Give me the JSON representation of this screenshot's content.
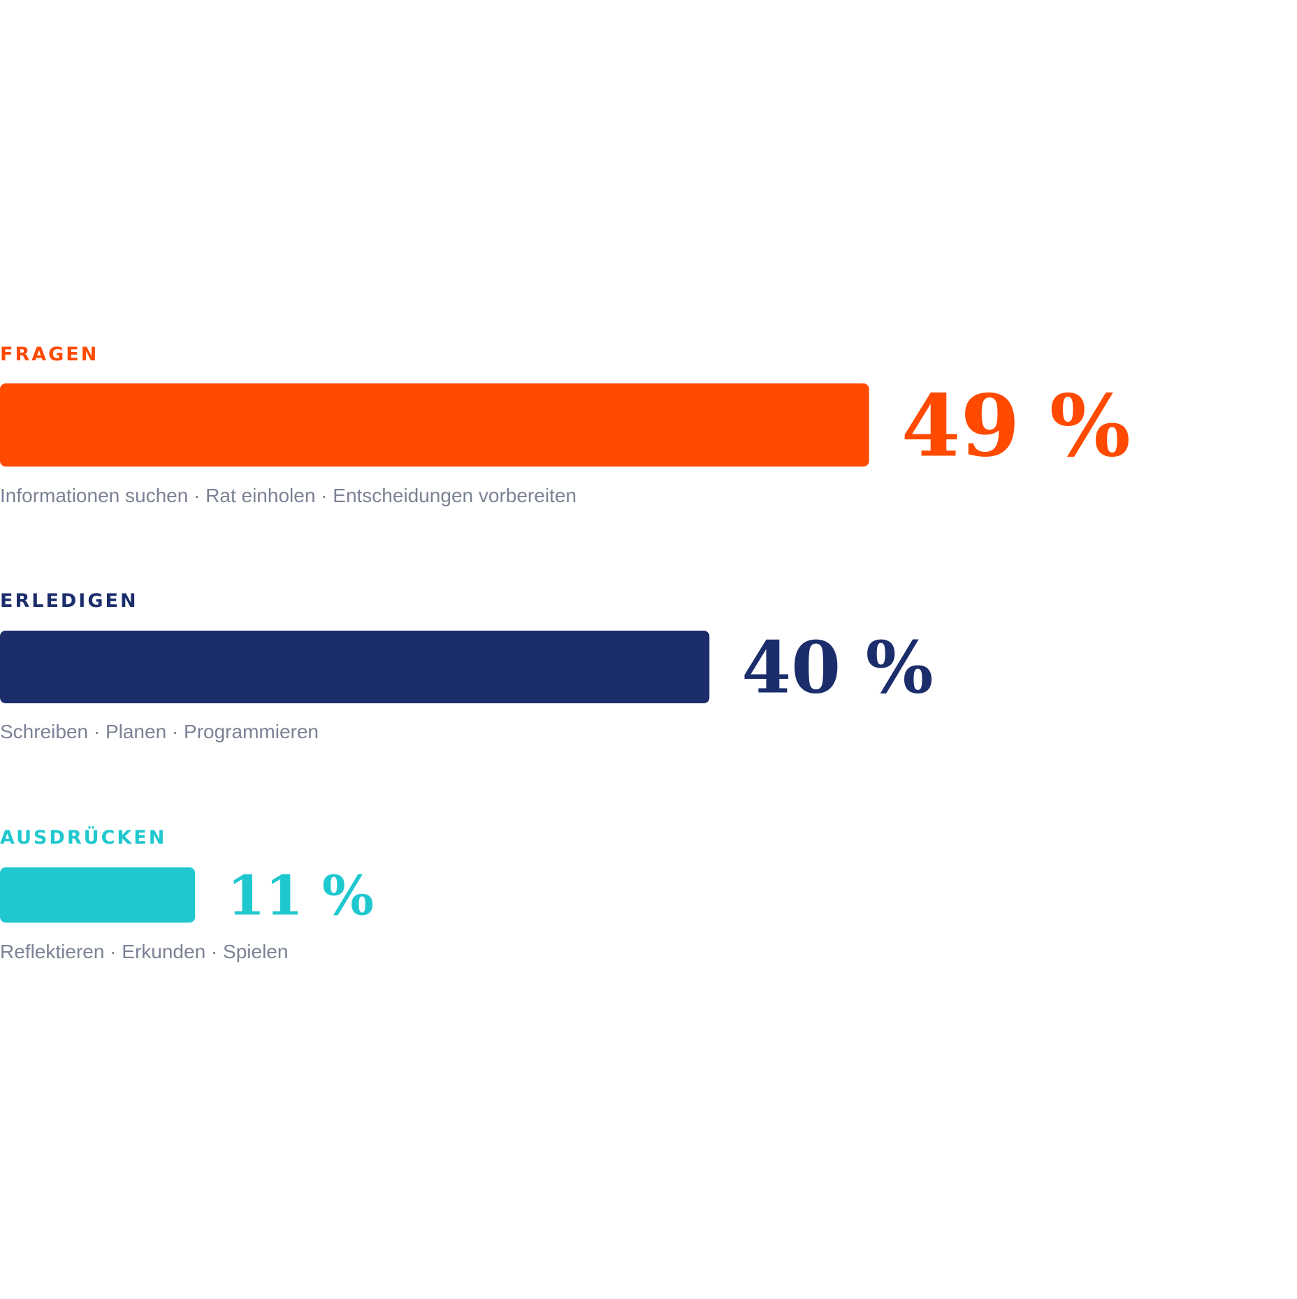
{
  "chart_data": {
    "type": "bar",
    "categories": [
      "FRAGEN",
      "ERLEDIGEN",
      "AUSDRÜCKEN"
    ],
    "values": [
      49,
      40,
      11
    ],
    "value_labels": [
      "49 %",
      "40 %",
      "11 %"
    ],
    "descriptions": [
      "Informationen suchen · Rat einholen · Entscheidungen vorbereiten",
      "Schreiben · Planen · Programmieren",
      "Reflektieren · Erkunden · Spielen"
    ],
    "colors": [
      "#ff4a00",
      "#1b2d6b",
      "#1fc8cf"
    ]
  }
}
